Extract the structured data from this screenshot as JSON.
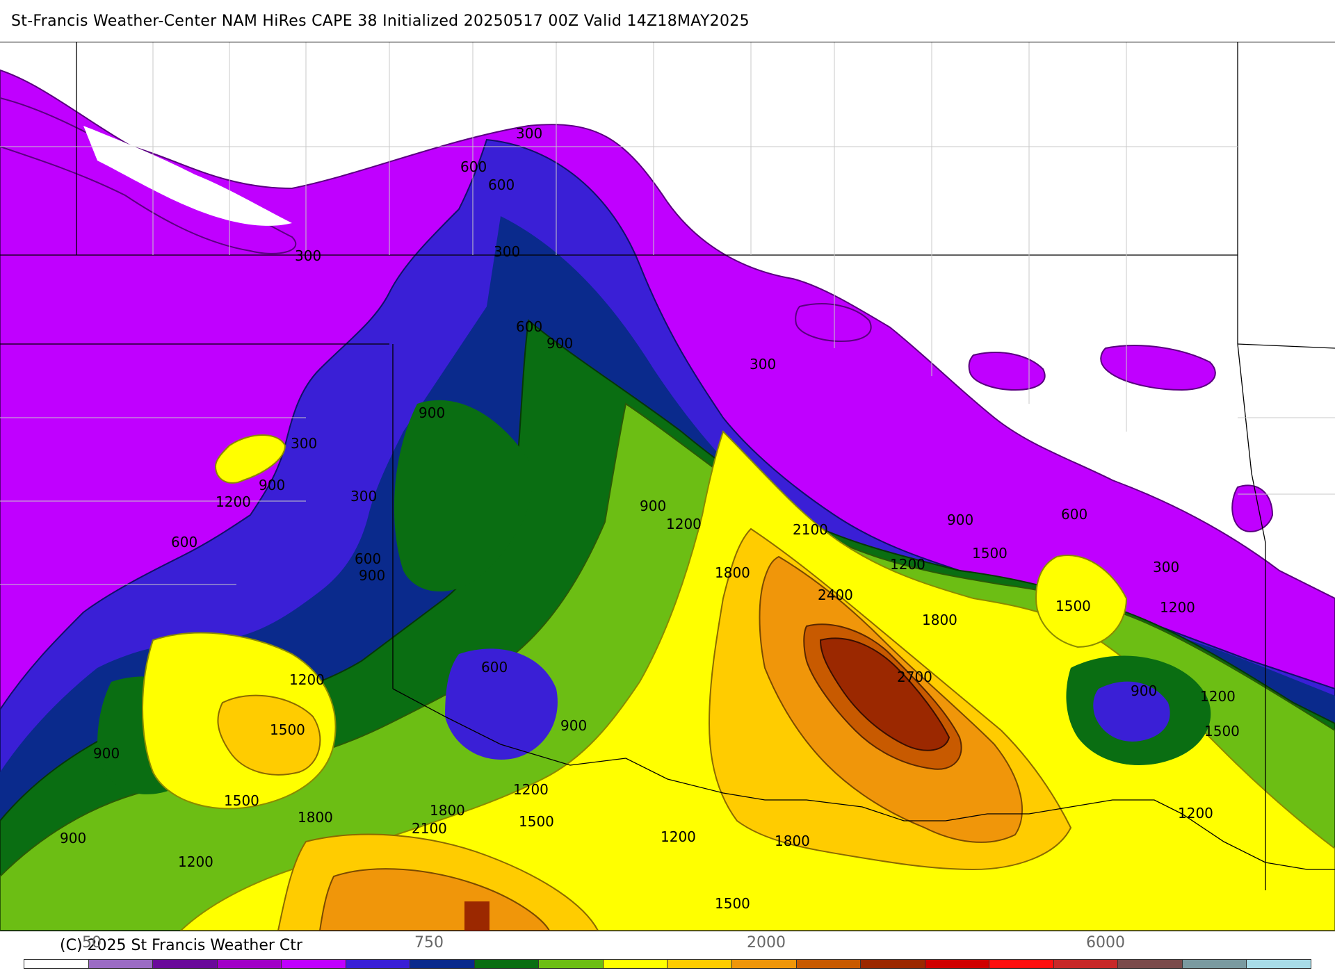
{
  "header": {
    "title": "St-Francis Weather-Center NAM HiRes CAPE  38 Initialized 20250517 00Z Valid 14Z18MAY2025"
  },
  "footer": {
    "copyright": "(C) 2025 St Francis Weather Ctr"
  },
  "legend": {
    "tick_labels": [
      "50",
      "750",
      "2000",
      "6000"
    ],
    "colors": [
      "#ffffff",
      "#9b6bc4",
      "#6a0a9a",
      "#a100c8",
      "#c000ff",
      "#3a1fd6",
      "#0a2a8c",
      "#0a6e12",
      "#6cbe14",
      "#ffff00",
      "#ffcc00",
      "#f0960a",
      "#c85a00",
      "#9b2800",
      "#d00000",
      "#ff1010",
      "#c82828",
      "#7a4a4a",
      "#7a9aa0",
      "#a8dce8"
    ]
  },
  "map": {
    "field": "CAPE",
    "contour_labels": [
      "300",
      "600",
      "600",
      "300",
      "300",
      "600",
      "900",
      "300",
      "900",
      "300",
      "900",
      "1200",
      "300",
      "600",
      "600",
      "900",
      "900",
      "1200",
      "2100",
      "1800",
      "900",
      "1200",
      "2400",
      "1800",
      "1500",
      "600",
      "1500",
      "1200",
      "300",
      "1200",
      "900",
      "600",
      "2700",
      "900",
      "1200",
      "1500",
      "900",
      "1500",
      "1500",
      "1800",
      "1800",
      "1200",
      "2100",
      "1500",
      "1200",
      "1800",
      "1200",
      "900",
      "1200",
      "1500"
    ]
  }
}
